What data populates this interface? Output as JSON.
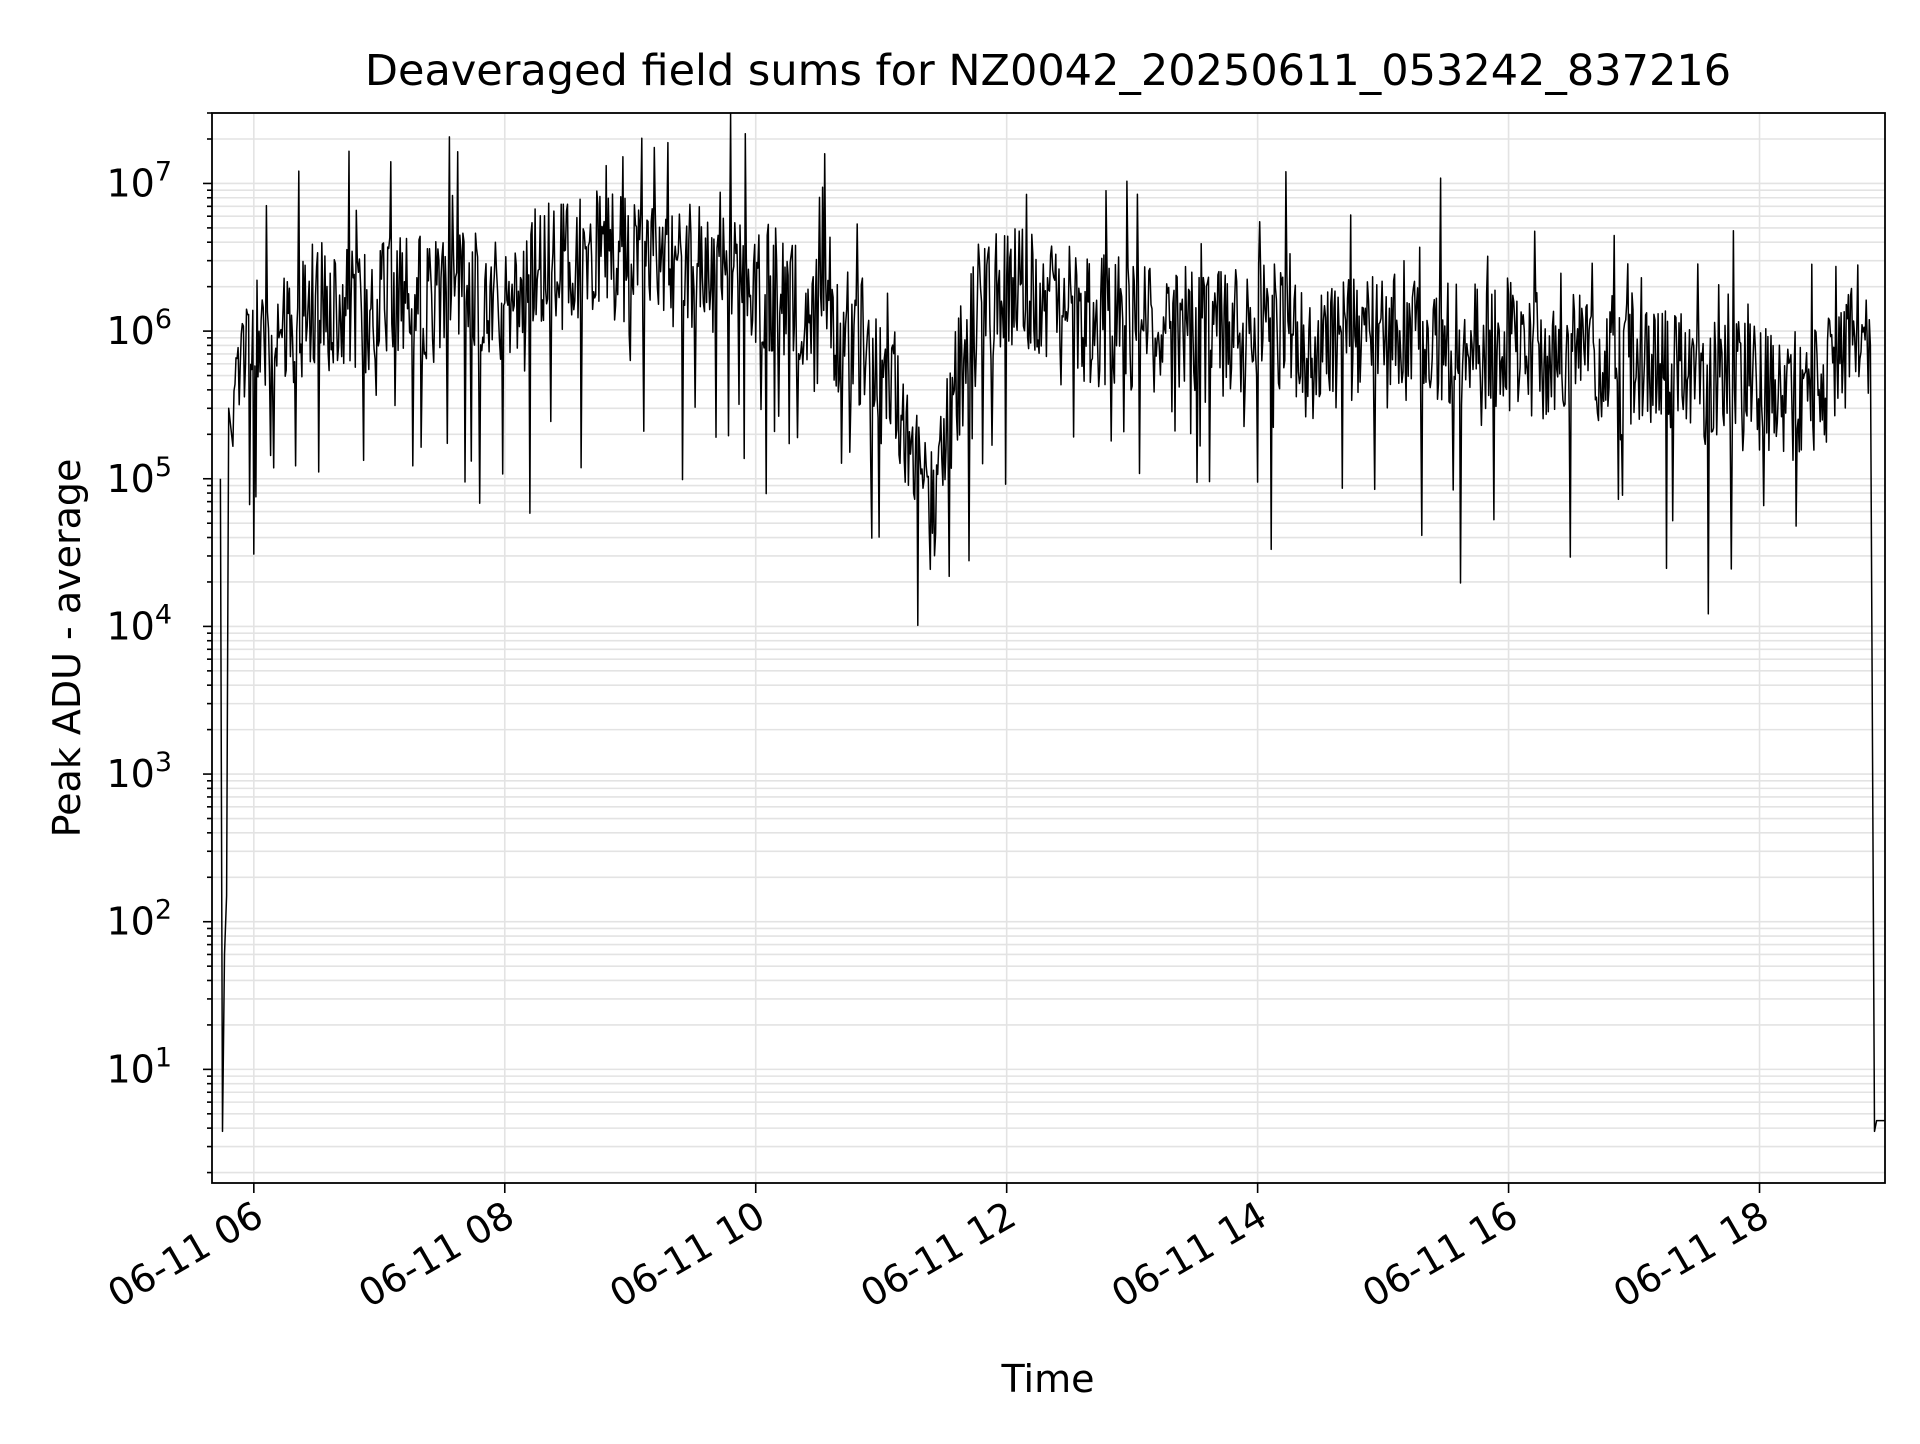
{
  "chart_data": {
    "type": "line",
    "title": "Deaveraged field sums for NZ0042_20250611_053242_837216",
    "xlabel": "Time",
    "ylabel": "Peak ADU - average",
    "x_scale": "time",
    "y_scale": "log",
    "xlim": [
      "2025-06-11 05:40",
      "2025-06-11 19:00"
    ],
    "ylim": [
      1.7,
      30000000
    ],
    "grid": true,
    "line_color": "#000000",
    "x_ticks": [
      {
        "value": "2025-06-11 06:00",
        "label": "06-11 06"
      },
      {
        "value": "2025-06-11 08:00",
        "label": "06-11 08"
      },
      {
        "value": "2025-06-11 10:00",
        "label": "06-11 10"
      },
      {
        "value": "2025-06-11 12:00",
        "label": "06-11 12"
      },
      {
        "value": "2025-06-11 14:00",
        "label": "06-11 14"
      },
      {
        "value": "2025-06-11 16:00",
        "label": "06-11 16"
      },
      {
        "value": "2025-06-11 18:00",
        "label": "06-11 18"
      }
    ],
    "y_ticks": [
      {
        "value": 10,
        "base": "10",
        "exp": "1"
      },
      {
        "value": 100,
        "base": "10",
        "exp": "2"
      },
      {
        "value": 1000,
        "base": "10",
        "exp": "3"
      },
      {
        "value": 10000,
        "base": "10",
        "exp": "4"
      },
      {
        "value": 100000,
        "base": "10",
        "exp": "5"
      },
      {
        "value": 1000000,
        "base": "10",
        "exp": "6"
      },
      {
        "value": 10000000,
        "base": "10",
        "exp": "7"
      }
    ],
    "series": [
      {
        "x": [
          "2025-06-11 05:44",
          "2025-06-11 05:45",
          "2025-06-11 05:46",
          "2025-06-11 05:47",
          "2025-06-11 05:48",
          "2025-06-11 05:50",
          "2025-06-11 05:52",
          "2025-06-11 05:55",
          "2025-06-11 06:00",
          "2025-06-11 06:10",
          "2025-06-11 06:20",
          "2025-06-11 06:30",
          "2025-06-11 06:40",
          "2025-06-11 06:50",
          "2025-06-11 07:00",
          "2025-06-11 07:10",
          "2025-06-11 07:20",
          "2025-06-11 07:30",
          "2025-06-11 07:40",
          "2025-06-11 07:50",
          "2025-06-11 08:00",
          "2025-06-11 08:15",
          "2025-06-11 08:30",
          "2025-06-11 08:45",
          "2025-06-11 09:00",
          "2025-06-11 09:15",
          "2025-06-11 09:30",
          "2025-06-11 09:45",
          "2025-06-11 10:00",
          "2025-06-11 10:15",
          "2025-06-11 10:30",
          "2025-06-11 10:45",
          "2025-06-11 11:00",
          "2025-06-11 11:10",
          "2025-06-11 11:15",
          "2025-06-11 11:20",
          "2025-06-11 11:25",
          "2025-06-11 11:30",
          "2025-06-11 11:35",
          "2025-06-11 11:40",
          "2025-06-11 11:45",
          "2025-06-11 12:00",
          "2025-06-11 12:20",
          "2025-06-11 12:40",
          "2025-06-11 13:00",
          "2025-06-11 13:20",
          "2025-06-11 13:40",
          "2025-06-11 14:00",
          "2025-06-11 14:20",
          "2025-06-11 14:40",
          "2025-06-11 15:00",
          "2025-06-11 15:20",
          "2025-06-11 15:40",
          "2025-06-11 16:00",
          "2025-06-11 16:20",
          "2025-06-11 16:40",
          "2025-06-11 17:00",
          "2025-06-11 17:20",
          "2025-06-11 17:40",
          "2025-06-11 18:00",
          "2025-06-11 18:20",
          "2025-06-11 18:30",
          "2025-06-11 18:40",
          "2025-06-11 18:45",
          "2025-06-11 18:50",
          "2025-06-11 18:53",
          "2025-06-11 18:55",
          "2025-06-11 18:56",
          "2025-06-11 19:00"
        ],
        "y": [
          100000,
          3.8,
          60,
          150,
          300000,
          200000,
          600000,
          900000,
          1000000,
          1000000,
          1200000,
          1500000,
          1500000,
          1200000,
          1700000,
          1800000,
          1600000,
          1500000,
          1700000,
          1900000,
          1500000,
          2200000,
          2800000,
          3200000,
          3000000,
          3100000,
          2800000,
          2500000,
          2200000,
          1600000,
          1200000,
          900000,
          700000,
          300000,
          150000,
          90000,
          60000,
          150000,
          400000,
          700000,
          1500000,
          2000000,
          1500000,
          1200000,
          1100000,
          1000000,
          900000,
          1100000,
          900000,
          800000,
          900000,
          850000,
          850000,
          800000,
          700000,
          650000,
          650000,
          500000,
          450000,
          400000,
          350000,
          450000,
          500000,
          1200000,
          1500000,
          800000,
          3.8,
          4.5,
          4.5
        ]
      }
    ]
  }
}
